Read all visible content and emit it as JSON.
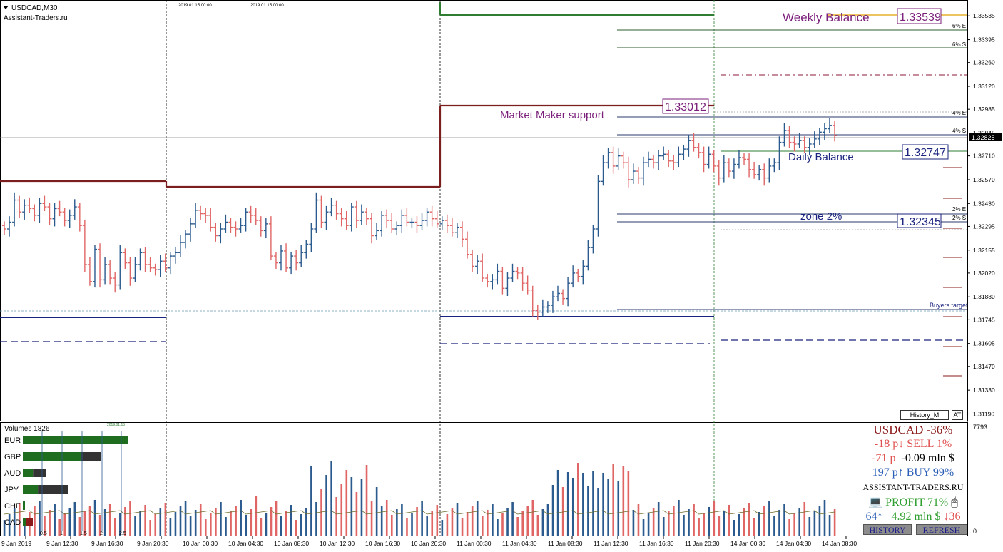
{
  "header": {
    "symbol": "USDCAD,M30",
    "broker": "Assistant-Traders.ru",
    "marker_date_1": "2019.01.15 00:00",
    "marker_date_2": "2019.01.15 00:00"
  },
  "price_axis": {
    "labels": [
      "1.33535",
      "1.33395",
      "1.33260",
      "1.33120",
      "1.32985",
      "1.32845",
      "1.32710",
      "1.32570",
      "1.32430",
      "1.32295",
      "1.32155",
      "1.32020",
      "1.31880",
      "1.31745",
      "1.31605",
      "1.31470",
      "1.31330",
      "1.31190"
    ],
    "current_price": "1.32825",
    "zone_labels": [
      "6% E",
      "6% S",
      "4% E",
      "4% S",
      "2% E",
      "2% S"
    ]
  },
  "annotations": {
    "weekly_balance_label": "Weekly Balance",
    "weekly_balance_value": "1.33539",
    "mm_support_label": "Market Maker support",
    "mm_support_value": "1.33012",
    "daily_balance_label": "Daily Balance",
    "daily_balance_value": "1.32747",
    "zone_label": "zone 2%",
    "zone_value": "1.32345",
    "buyers_target": "Buyers target"
  },
  "buttons": {
    "history_m": "History_M",
    "at": "AT",
    "history": "HISTORY",
    "refresh": "REFRESH"
  },
  "volumes": {
    "title": "Volumes 1826",
    "max_label": "7793",
    "zero_label": "0",
    "small_label": "2019.01.15",
    "currencies": [
      {
        "name": "EUR",
        "green": 1.0,
        "dark": 0.0
      },
      {
        "name": "GBP",
        "green": 0.74,
        "dark": 0.26
      },
      {
        "name": "AUD",
        "green": 0.43,
        "dark": 0.57
      },
      {
        "name": "JPY",
        "green": 0.33,
        "dark": 0.67
      },
      {
        "name": "CHF",
        "green": 1.0,
        "dark": 0.0
      },
      {
        "name": "CAD",
        "green": 0.3,
        "dark": 0.7
      }
    ],
    "scale_ticks": [
      "0.5",
      "1",
      "1.5",
      "2",
      "2.5"
    ]
  },
  "info_panel": {
    "line1": "USDCAD -36%",
    "line2": "-18 p↓  SELL 1%",
    "line3": "-71 p",
    "line3b": "-0.09 mln $",
    "line4": "197 p↑  BUY 99%",
    "site": "ASSISTANT-TRADERS.RU",
    "profit": "PROFIT 71%",
    "line6a": "64↑",
    "line6b": "4.92 mln $",
    "line6c": "↓36",
    "colors": {
      "title": "#8b1a1a",
      "sell": "#e05050",
      "buy": "#2b5eb5",
      "profit": "#2e9e2e"
    }
  },
  "time_axis": [
    "9 Jan 2019",
    "9 Jan 12:30",
    "9 Jan 16:30",
    "9 Jan 20:30",
    "10 Jan 00:30",
    "10 Jan 04:30",
    "10 Jan 08:30",
    "10 Jan 12:30",
    "10 Jan 16:30",
    "10 Jan 20:30",
    "11 Jan 00:30",
    "11 Jan 04:30",
    "11 Jan 08:30",
    "11 Jan 12:30",
    "11 Jan 16:30",
    "11 Jan 20:30",
    "14 Jan 00:30",
    "14 Jan 04:30",
    "14 Jan 08:30"
  ],
  "colors": {
    "bull": "#2b5a8e",
    "bear": "#e06666",
    "weekly_line": "#2e7d32",
    "mm_line": "#7b1e1e",
    "support_line": "#1a237e",
    "label_purple": "#7b1f7a"
  },
  "chart_data": {
    "type": "candlestick",
    "symbol": "USDCAD",
    "timeframe": "M30",
    "ylim": [
      1.3115,
      1.3362
    ],
    "closes": [
      1.3228,
      1.3232,
      1.3245,
      1.3238,
      1.3242,
      1.324,
      1.3236,
      1.3243,
      1.3241,
      1.3234,
      1.324,
      1.3238,
      1.3233,
      1.3236,
      1.3241,
      1.323,
      1.3207,
      1.3197,
      1.3216,
      1.3198,
      1.3207,
      1.3199,
      1.3195,
      1.3214,
      1.3208,
      1.3199,
      1.3207,
      1.3214,
      1.3207,
      1.3205,
      1.3204,
      1.3209,
      1.3205,
      1.3212,
      1.3214,
      1.322,
      1.3225,
      1.3231,
      1.3239,
      1.3237,
      1.3236,
      1.3229,
      1.3224,
      1.3228,
      1.3232,
      1.3229,
      1.3228,
      1.323,
      1.3238,
      1.3236,
      1.3233,
      1.3227,
      1.3231,
      1.3212,
      1.3208,
      1.3215,
      1.3205,
      1.3212,
      1.3208,
      1.3214,
      1.3219,
      1.3228,
      1.3245,
      1.3232,
      1.3238,
      1.3242,
      1.3237,
      1.3234,
      1.323,
      1.3241,
      1.3233,
      1.3238,
      1.3234,
      1.3224,
      1.3227,
      1.3236,
      1.3233,
      1.3228,
      1.323,
      1.3236,
      1.3232,
      1.3232,
      1.323,
      1.3233,
      1.3238,
      1.3234,
      1.3231,
      1.3233,
      1.323,
      1.3226,
      1.3229,
      1.3222,
      1.3213,
      1.3206,
      1.3209,
      1.3199,
      1.3197,
      1.3198,
      1.3203,
      1.3193,
      1.3199,
      1.3203,
      1.3202,
      1.3196,
      1.3192,
      1.318,
      1.3179,
      1.3182,
      1.3183,
      1.3188,
      1.319,
      1.3187,
      1.3196,
      1.3202,
      1.32,
      1.3206,
      1.3217,
      1.3228,
      1.3256,
      1.3267,
      1.3273,
      1.3265,
      1.3271,
      1.3267,
      1.3257,
      1.3262,
      1.3258,
      1.3267,
      1.3269,
      1.3267,
      1.3271,
      1.3272,
      1.3268,
      1.3267,
      1.3272,
      1.3275,
      1.328,
      1.3276,
      1.3273,
      1.3266,
      1.3272,
      1.3265,
      1.3258,
      1.3267,
      1.3262,
      1.3266,
      1.327,
      1.3269,
      1.3263,
      1.326,
      1.3263,
      1.3258,
      1.3265,
      1.3267,
      1.3279,
      1.3286,
      1.3279,
      1.3278,
      1.328,
      1.3276,
      1.3278,
      1.3281,
      1.3285,
      1.3287,
      1.3289,
      1.3283
    ]
  }
}
